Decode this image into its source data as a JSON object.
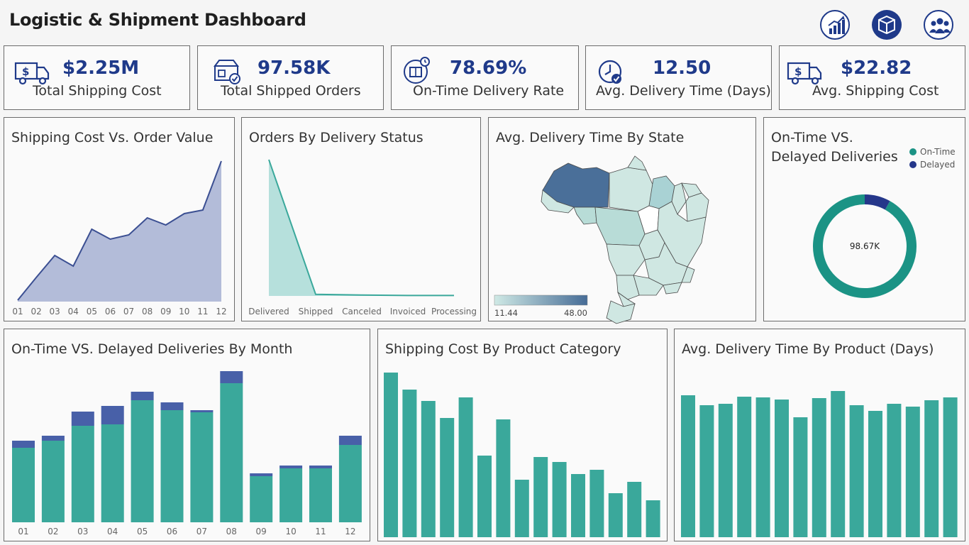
{
  "header": {
    "title": "Logistic & Shipment Dashboard",
    "icons": [
      "chart-growth-icon",
      "package-box-icon",
      "team-people-icon"
    ]
  },
  "colors": {
    "navy": "#1f3a8a",
    "teal": "#3aa89b",
    "bar_delay": "#4860a8",
    "area": "#b3bcd9",
    "area_line": "#3b4f92"
  },
  "kpis": [
    {
      "value": "$2.25M",
      "label": "Total Shipping Cost",
      "icon": "delivery-truck-dollar-icon"
    },
    {
      "value": "97.58K",
      "label": "Total Shipped Orders",
      "icon": "shopping-box-check-icon"
    },
    {
      "value": "78.69%",
      "label": "On-Time Delivery Rate",
      "icon": "delivery-clock-box-icon"
    },
    {
      "value": "12.50",
      "label": "Avg. Delivery Time (Days)",
      "icon": "clock-check-icon"
    },
    {
      "value": "$22.82",
      "label": "Avg.  Shipping Cost",
      "icon": "delivery-truck-dollar-icon"
    }
  ],
  "chart_data": [
    {
      "id": "shipping_vs_order",
      "type": "area",
      "title": "Shipping Cost Vs. Order Value",
      "categories": [
        "01",
        "02",
        "03",
        "04",
        "05",
        "06",
        "07",
        "08",
        "09",
        "10",
        "11",
        "12"
      ],
      "values": [
        2,
        34,
        65,
        50,
        102,
        88,
        94,
        118,
        108,
        124,
        129,
        198
      ],
      "ylim": [
        0,
        200
      ]
    },
    {
      "id": "orders_by_status",
      "type": "area",
      "title": "Orders By Delivery Status",
      "categories": [
        "Delivered",
        "Shipped",
        "Canceled",
        "Invoiced",
        "Processing"
      ],
      "values": [
        96478,
        1107,
        625,
        314,
        301
      ],
      "ylim": [
        0,
        96478
      ]
    },
    {
      "id": "delivery_time_by_state",
      "type": "heatmap",
      "title": "Avg. Delivery Time By State",
      "legend_min": "11.44",
      "legend_max": "48.00"
    },
    {
      "id": "ontime_vs_delayed",
      "type": "pie",
      "title": "On-Time VS. Delayed Deliveries",
      "center_label": "98.67K",
      "legend": [
        "On-Time",
        "Delayed"
      ],
      "slices": [
        {
          "name": "On-Time",
          "value": 91.9
        },
        {
          "name": "Delayed",
          "value": 8.1
        }
      ]
    },
    {
      "id": "deliveries_by_month",
      "type": "bar",
      "title": "On-Time VS. Delayed Deliveries By Month",
      "categories": [
        "01",
        "02",
        "03",
        "04",
        "05",
        "06",
        "07",
        "08",
        "09",
        "10",
        "11",
        "12"
      ],
      "series": [
        {
          "name": "On-Time",
          "values": [
            105,
            115,
            136,
            138,
            172,
            158,
            155,
            196,
            65,
            76,
            76,
            109
          ]
        },
        {
          "name": "Delayed",
          "values": [
            10,
            7,
            20,
            26,
            12,
            11,
            3,
            17,
            4,
            4,
            4,
            13
          ]
        }
      ],
      "ylim": [
        0,
        213
      ]
    },
    {
      "id": "shipping_cost_by_category",
      "type": "bar",
      "title": "Shipping Cost By Product Category",
      "values": [
        232,
        208,
        192,
        168,
        197,
        115,
        166,
        81,
        113,
        106,
        89,
        95,
        62,
        78,
        52
      ],
      "ylim": [
        0,
        232
      ]
    },
    {
      "id": "delivery_time_by_product",
      "type": "bar",
      "title": "Avg. Delivery Time By Product (Days)",
      "values": [
        200,
        186,
        188,
        198,
        197,
        194,
        169,
        196,
        206,
        186,
        178,
        188,
        184,
        193,
        197
      ],
      "ylim": [
        0,
        230
      ]
    }
  ]
}
